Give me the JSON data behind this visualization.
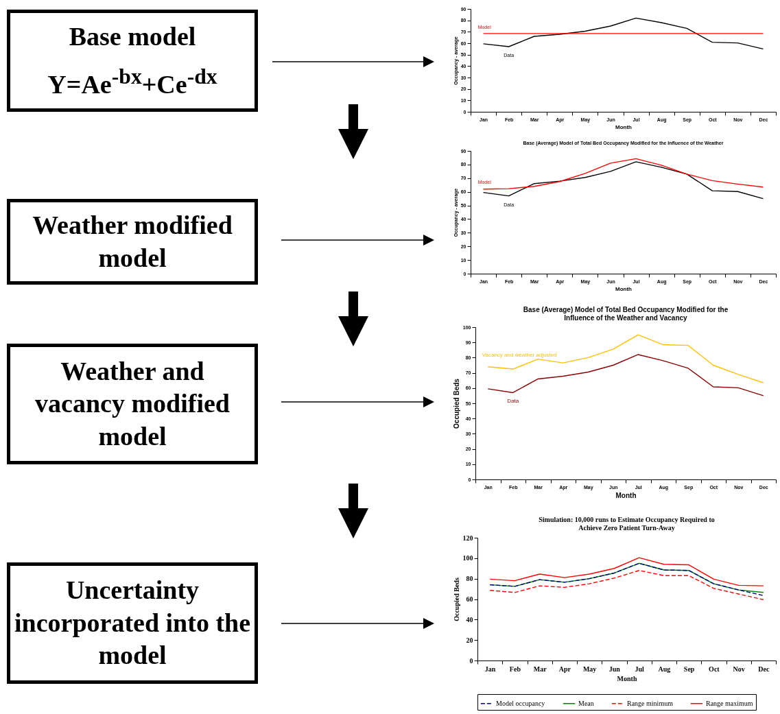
{
  "chart_data": [
    {
      "type": "other",
      "title": "Base model",
      "annotations": [
        "Y=Ae$^{-bx}$+Ce$^{-dx}$"
      ]
    },
    {
      "type": "line",
      "xlabel": "Month",
      "ylabel": "Occupancy - average",
      "categories": [
        "Jan",
        "Feb",
        "Mar",
        "Apr",
        "May",
        "Jun",
        "Jul",
        "Aug",
        "Sep",
        "Oct",
        "Nov",
        "Dec"
      ],
      "ylim": [
        0,
        90
      ],
      "yticks": [
        0,
        10,
        20,
        30,
        40,
        50,
        60,
        70,
        80,
        90
      ],
      "grid": false,
      "legend": false,
      "series": [
        {
          "name": "Model",
          "color": "#ff0000",
          "values": [
            68.5,
            68.5,
            68.5,
            68.5,
            68.5,
            68.5,
            68.5,
            68.5,
            68.5,
            68.5,
            68.5,
            68.5
          ]
        },
        {
          "name": "Data",
          "color": "#000000",
          "values": [
            59.5,
            57,
            66,
            67.8,
            70.5,
            75,
            82,
            78,
            73,
            60.8,
            60.2,
            55
          ]
        }
      ]
    },
    {
      "type": "other",
      "title": "Weather modified model"
    },
    {
      "type": "line",
      "title": "Base (Average) Model of Total Bed Occupancy Modified for the Influence of the Weather",
      "xlabel": "Month",
      "ylabel": "Occupancy - average",
      "categories": [
        "Jan",
        "Feb",
        "Mar",
        "Apr",
        "May",
        "Jun",
        "Jul",
        "Aug",
        "Sep",
        "Oct",
        "Nov",
        "Dec"
      ],
      "ylim": [
        0,
        90
      ],
      "yticks": [
        0,
        10,
        20,
        30,
        40,
        50,
        60,
        70,
        80,
        90
      ],
      "grid": false,
      "legend": false,
      "series": [
        {
          "name": "Model",
          "color": "#ff0000",
          "values": [
            62,
            62.3,
            64,
            67.5,
            73.5,
            81,
            84.3,
            79.5,
            73,
            68.2,
            65.7,
            63.5
          ]
        },
        {
          "name": "Data",
          "color": "#000000",
          "values": [
            59.5,
            57,
            66,
            67.8,
            70.5,
            75,
            82,
            78,
            73,
            60.8,
            60.2,
            55
          ]
        }
      ]
    },
    {
      "type": "other",
      "title": "Weather and vacancy modified model"
    },
    {
      "type": "line",
      "title": "Base (Average) Model of Total Bed Occupancy Modified for the Influence of the Weather and Vacancy",
      "xlabel": "Month",
      "ylabel": "Occupied Beds",
      "categories": [
        "Jan",
        "Feb",
        "Mar",
        "Apr",
        "May",
        "Jun",
        "Jul",
        "Aug",
        "Sep",
        "Oct",
        "Nov",
        "Dec"
      ],
      "ylim": [
        0,
        100
      ],
      "yticks": [
        0,
        10,
        20,
        30,
        40,
        50,
        60,
        70,
        80,
        90,
        100
      ],
      "grid": false,
      "legend": false,
      "series": [
        {
          "name": "Vacancy and weather adjusted",
          "color": "#ffc000",
          "values": [
            74,
            72.5,
            79,
            76.5,
            80,
            85.5,
            95,
            88.5,
            88,
            75,
            69,
            63.5
          ]
        },
        {
          "name": "Data",
          "color": "#8b0000",
          "values": [
            59.5,
            57,
            66,
            67.8,
            70.5,
            75,
            82,
            78,
            73,
            60.8,
            60.2,
            55
          ]
        }
      ]
    },
    {
      "type": "other",
      "title": "Uncertainty incorporated into the model"
    },
    {
      "type": "line",
      "title": "Simulation: 10,000 runs to Estimate Occupancy Required to Achieve Zero Patient Turn-Away",
      "xlabel": "Month",
      "ylabel": "Occupied Beds",
      "categories": [
        "Jan",
        "Feb",
        "Mar",
        "Apr",
        "May",
        "Jun",
        "Jul",
        "Aug",
        "Sep",
        "Oct",
        "Nov",
        "Dec"
      ],
      "ylim": [
        0,
        120
      ],
      "yticks": [
        0,
        20,
        40,
        60,
        80,
        100,
        120
      ],
      "grid": false,
      "legend": "bottom",
      "series": [
        {
          "name": "Model occupancy",
          "color": "#00008b",
          "line_style": "dashed",
          "values": [
            74,
            72.5,
            79,
            76.5,
            80,
            85.5,
            95,
            88.5,
            88,
            75,
            69,
            63.5
          ]
        },
        {
          "name": "Mean",
          "color": "#008000",
          "values": [
            74,
            72.5,
            79,
            76.5,
            80,
            85.5,
            95,
            88.5,
            88,
            75,
            69,
            66.5
          ]
        },
        {
          "name": "Range minimum",
          "color": "#ff0000",
          "line_style": "dashed",
          "values": [
            68.5,
            66.5,
            73,
            71.5,
            75,
            80.5,
            88,
            83,
            83,
            70.5,
            65,
            59.5
          ]
        },
        {
          "name": "Range maximum",
          "color": "#ff0000",
          "values": [
            79.5,
            78,
            84.5,
            81,
            84.5,
            90,
            100.5,
            94,
            93.5,
            79.5,
            73.5,
            73
          ]
        }
      ]
    }
  ]
}
